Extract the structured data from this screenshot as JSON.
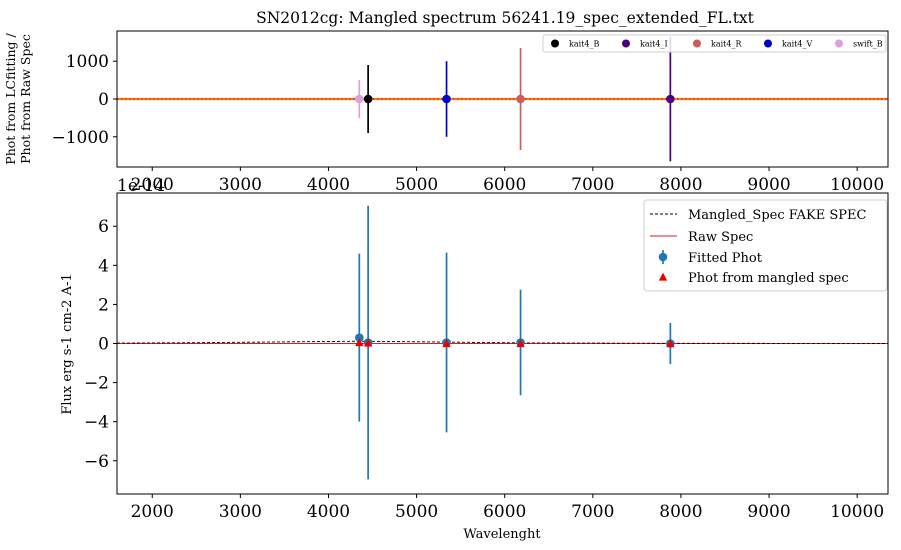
{
  "chart_data": [
    {
      "type": "scatter",
      "title": "SN2012cg: Mangled spectrum 56241.19_spec_extended_FL.txt",
      "ylabel_line1": "Phot from LCfitting /",
      "ylabel_line2": "Phot from Raw Spec",
      "xlim": [
        1600,
        10350
      ],
      "ylim": [
        -1800,
        1800
      ],
      "xticks": [
        "2000",
        "3000",
        "4000",
        "5000",
        "6000",
        "7000",
        "8000",
        "9000",
        "10000"
      ],
      "yticks": [
        "−1000",
        "0",
        "1000"
      ],
      "offset_label": "1e-14",
      "grid": false,
      "legend_position": "upper-right",
      "reference_lines": [
        {
          "y": 0,
          "style": "solid",
          "color": "#ff7f0e"
        },
        {
          "y": 0,
          "style": "dotted",
          "color": "#d62728"
        }
      ],
      "series": [
        {
          "name": "kait4_B",
          "color": "#000000",
          "x": 4450,
          "y": 0,
          "yerr": 900
        },
        {
          "name": "kait4_I",
          "color": "#4b0082",
          "x": 7880,
          "y": 0,
          "yerr": 1650
        },
        {
          "name": "kait4_R",
          "color": "#cd5c5c",
          "x": 6180,
          "y": 0,
          "yerr": 1350
        },
        {
          "name": "kait4_V",
          "color": "#0000cd",
          "x": 5340,
          "y": 0,
          "yerr": 1000
        },
        {
          "name": "swift_B",
          "color": "#dda0dd",
          "x": 4350,
          "y": 0,
          "yerr": 500
        }
      ]
    },
    {
      "type": "scatter",
      "xlabel": "Wavelenght",
      "ylabel": "Flux erg s-1 cm-2 A-1",
      "xlim": [
        1600,
        10350
      ],
      "ylim": [
        -7.7,
        7.7
      ],
      "xticks": [
        "2000",
        "3000",
        "4000",
        "5000",
        "6000",
        "7000",
        "8000",
        "9000",
        "10000"
      ],
      "yticks": [
        "−6",
        "−4",
        "−2",
        "0",
        "2",
        "4",
        "6"
      ],
      "grid": false,
      "legend_position": "upper-right",
      "legend": [
        {
          "label": "Mangled_Spec FAKE SPEC",
          "kind": "dashed-line",
          "color": "#000000"
        },
        {
          "label": "Raw Spec",
          "kind": "line",
          "color": "#e31a1c"
        },
        {
          "label": "Fitted Phot",
          "kind": "errorbar-dot",
          "color": "#1f77b4"
        },
        {
          "label": "Phot from mangled spec",
          "kind": "triangle",
          "color": "#ee0000"
        }
      ],
      "fitted_phot": [
        {
          "x": 4350,
          "y": 0.3,
          "yerr": 4.3
        },
        {
          "x": 4450,
          "y": 0.05,
          "yerr": 7.0
        },
        {
          "x": 5340,
          "y": 0.05,
          "yerr": 4.6
        },
        {
          "x": 6180,
          "y": 0.05,
          "yerr": 2.7
        },
        {
          "x": 7880,
          "y": 0.0,
          "yerr": 1.05
        }
      ],
      "phot_from_mangled_spec": [
        {
          "x": 4350,
          "y": 0.05
        },
        {
          "x": 4450,
          "y": 0.03
        },
        {
          "x": 5340,
          "y": 0.0
        },
        {
          "x": 6180,
          "y": 0.0
        },
        {
          "x": 7880,
          "y": 0.0
        }
      ],
      "mangled_spec": {
        "x": [
          1600,
          2500,
          3500,
          4350,
          5340,
          6180,
          7880,
          10350
        ],
        "y": [
          0.02,
          0.04,
          0.08,
          0.12,
          0.07,
          0.03,
          0.01,
          0.0
        ]
      },
      "raw_spec": {
        "x": [
          1600,
          10350
        ],
        "y": [
          0.0,
          0.0
        ]
      }
    }
  ]
}
